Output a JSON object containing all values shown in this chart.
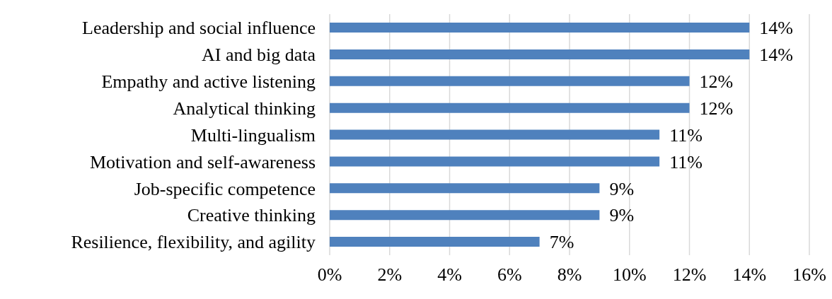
{
  "chart_data": {
    "type": "bar",
    "orientation": "horizontal",
    "categories": [
      "Leadership and social influence",
      "AI and big data",
      "Empathy and active listening",
      "Analytical thinking",
      "Multi-lingualism",
      "Motivation and self-awareness",
      "Job-specific competence",
      "Creative thinking",
      "Resilience, flexibility, and agility"
    ],
    "values": [
      14,
      14,
      12,
      12,
      11,
      11,
      9,
      9,
      7
    ],
    "value_labels": [
      "14%",
      "14%",
      "12%",
      "12%",
      "11%",
      "11%",
      "9%",
      "9%",
      "7%"
    ],
    "color": "#4f81bd",
    "xlim": [
      0,
      16
    ],
    "xticks": [
      {
        "value": 0,
        "label": "0%"
      },
      {
        "value": 2,
        "label": "2%"
      },
      {
        "value": 4,
        "label": "4%"
      },
      {
        "value": 6,
        "label": "6%"
      },
      {
        "value": 8,
        "label": "8%"
      },
      {
        "value": 10,
        "label": "10%"
      },
      {
        "value": 12,
        "label": "12%"
      },
      {
        "value": 14,
        "label": "14%"
      },
      {
        "value": 16,
        "label": "16%"
      }
    ],
    "grid": "x",
    "legend": false
  }
}
